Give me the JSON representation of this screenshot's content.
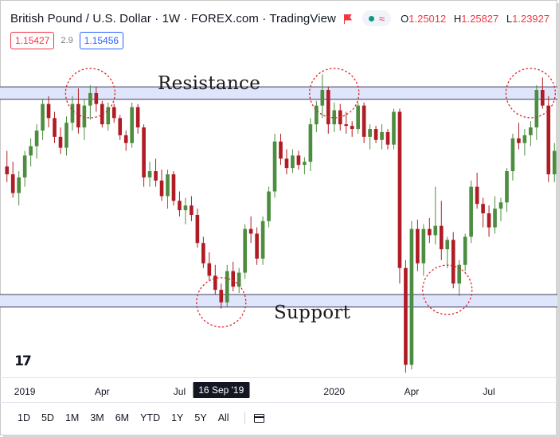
{
  "header": {
    "title": "British Pound / U.S. Dollar · 1W · FOREX.com · TradingView",
    "ohlc": [
      {
        "key": "O",
        "value": "1.25012"
      },
      {
        "key": "H",
        "value": "1.25827"
      },
      {
        "key": "L",
        "value": "1.23927"
      }
    ]
  },
  "quote": {
    "sell": "1.15427",
    "spread": "2.9",
    "buy": "1.15456"
  },
  "annotations": {
    "resistance": "Resistance",
    "support": "Support"
  },
  "colors": {
    "up": "#4c8d3f",
    "down": "#b01c24",
    "zone_fill": "#dfe5fb",
    "circle": "#e0242c",
    "accent_red": "#f23645",
    "accent_blue": "#2962ff"
  },
  "x_axis": {
    "labels": [
      {
        "text": "2019",
        "index": 3
      },
      {
        "text": "Apr",
        "index": 16
      },
      {
        "text": "Jul",
        "index": 29
      },
      {
        "text": "16 Sep '19",
        "index": 36,
        "highlight": true
      },
      {
        "text": "2020",
        "index": 55
      },
      {
        "text": "Apr",
        "index": 68
      },
      {
        "text": "Jul",
        "index": 81
      }
    ]
  },
  "footer": {
    "ranges": [
      "1D",
      "5D",
      "1M",
      "3M",
      "6M",
      "YTD",
      "1Y",
      "5Y",
      "All"
    ]
  },
  "logo": {
    "text": "17"
  },
  "chart_data": {
    "type": "candlestick",
    "symbol": "GBPUSD",
    "interval": "1W",
    "ylim": [
      1.14,
      1.35
    ],
    "zones": [
      {
        "label": "Resistance",
        "low": 1.318,
        "high": 1.326
      },
      {
        "label": "Support",
        "low": 1.185,
        "high": 1.193
      }
    ],
    "highlights": [
      {
        "index": 14,
        "price": 1.322
      },
      {
        "index": 36,
        "price": 1.188
      },
      {
        "index": 55,
        "price": 1.322
      },
      {
        "index": 74,
        "price": 1.196
      },
      {
        "index": 88,
        "price": 1.322
      }
    ],
    "candles": [
      [
        1.275,
        1.285,
        1.265,
        1.27
      ],
      [
        1.27,
        1.278,
        1.255,
        1.258
      ],
      [
        1.258,
        1.272,
        1.25,
        1.268
      ],
      [
        1.268,
        1.285,
        1.262,
        1.282
      ],
      [
        1.282,
        1.293,
        1.275,
        1.288
      ],
      [
        1.288,
        1.302,
        1.28,
        1.298
      ],
      [
        1.298,
        1.318,
        1.292,
        1.315
      ],
      [
        1.315,
        1.32,
        1.3,
        1.306
      ],
      [
        1.306,
        1.31,
        1.29,
        1.294
      ],
      [
        1.294,
        1.3,
        1.283,
        1.287
      ],
      [
        1.287,
        1.307,
        1.282,
        1.303
      ],
      [
        1.303,
        1.32,
        1.298,
        1.315
      ],
      [
        1.315,
        1.325,
        1.296,
        1.3
      ],
      [
        1.3,
        1.318,
        1.292,
        1.314
      ],
      [
        1.314,
        1.327,
        1.305,
        1.322
      ],
      [
        1.322,
        1.326,
        1.31,
        1.315
      ],
      [
        1.315,
        1.317,
        1.3,
        1.302
      ],
      [
        1.302,
        1.316,
        1.298,
        1.313
      ],
      [
        1.313,
        1.315,
        1.303,
        1.306
      ],
      [
        1.306,
        1.308,
        1.292,
        1.295
      ],
      [
        1.295,
        1.298,
        1.285,
        1.29
      ],
      [
        1.29,
        1.316,
        1.287,
        1.313
      ],
      [
        1.313,
        1.315,
        1.296,
        1.3
      ],
      [
        1.3,
        1.302,
        1.262,
        1.268
      ],
      [
        1.268,
        1.278,
        1.262,
        1.272
      ],
      [
        1.272,
        1.28,
        1.262,
        1.266
      ],
      [
        1.266,
        1.273,
        1.253,
        1.256
      ],
      [
        1.256,
        1.273,
        1.248,
        1.27
      ],
      [
        1.27,
        1.272,
        1.25,
        1.253
      ],
      [
        1.253,
        1.259,
        1.243,
        1.247
      ],
      [
        1.247,
        1.255,
        1.238,
        1.25
      ],
      [
        1.25,
        1.256,
        1.24,
        1.244
      ],
      [
        1.244,
        1.248,
        1.223,
        1.226
      ],
      [
        1.226,
        1.23,
        1.21,
        1.213
      ],
      [
        1.213,
        1.22,
        1.202,
        1.205
      ],
      [
        1.205,
        1.212,
        1.193,
        1.196
      ],
      [
        1.196,
        1.2,
        1.184,
        1.188
      ],
      [
        1.188,
        1.212,
        1.185,
        1.208
      ],
      [
        1.208,
        1.214,
        1.195,
        1.198
      ],
      [
        1.198,
        1.21,
        1.194,
        1.207
      ],
      [
        1.207,
        1.238,
        1.203,
        1.235
      ],
      [
        1.235,
        1.243,
        1.226,
        1.232
      ],
      [
        1.232,
        1.236,
        1.212,
        1.216
      ],
      [
        1.216,
        1.243,
        1.212,
        1.24
      ],
      [
        1.24,
        1.262,
        1.236,
        1.259
      ],
      [
        1.259,
        1.296,
        1.255,
        1.291
      ],
      [
        1.291,
        1.296,
        1.276,
        1.28
      ],
      [
        1.28,
        1.286,
        1.27,
        1.274
      ],
      [
        1.274,
        1.286,
        1.271,
        1.282
      ],
      [
        1.282,
        1.285,
        1.273,
        1.276
      ],
      [
        1.276,
        1.281,
        1.27,
        1.278
      ],
      [
        1.278,
        1.306,
        1.272,
        1.302
      ],
      [
        1.302,
        1.317,
        1.297,
        1.314
      ],
      [
        1.314,
        1.334,
        1.306,
        1.324
      ],
      [
        1.324,
        1.326,
        1.296,
        1.302
      ],
      [
        1.302,
        1.316,
        1.297,
        1.311
      ],
      [
        1.311,
        1.315,
        1.298,
        1.302
      ],
      [
        1.302,
        1.31,
        1.296,
        1.301
      ],
      [
        1.301,
        1.304,
        1.294,
        1.299
      ],
      [
        1.299,
        1.316,
        1.296,
        1.314
      ],
      [
        1.314,
        1.316,
        1.29,
        1.294
      ],
      [
        1.294,
        1.302,
        1.286,
        1.299
      ],
      [
        1.299,
        1.301,
        1.29,
        1.292
      ],
      [
        1.292,
        1.302,
        1.286,
        1.297
      ],
      [
        1.297,
        1.299,
        1.286,
        1.289
      ],
      [
        1.289,
        1.312,
        1.286,
        1.31
      ],
      [
        1.31,
        1.312,
        1.2,
        1.21
      ],
      [
        1.21,
        1.215,
        1.143,
        1.148
      ],
      [
        1.148,
        1.24,
        1.145,
        1.235
      ],
      [
        1.235,
        1.241,
        1.208,
        1.213
      ],
      [
        1.213,
        1.238,
        1.205,
        1.235
      ],
      [
        1.235,
        1.242,
        1.226,
        1.231
      ],
      [
        1.231,
        1.262,
        1.225,
        1.237
      ],
      [
        1.237,
        1.253,
        1.215,
        1.222
      ],
      [
        1.222,
        1.23,
        1.21,
        1.228
      ],
      [
        1.228,
        1.233,
        1.197,
        1.2
      ],
      [
        1.2,
        1.215,
        1.192,
        1.212
      ],
      [
        1.212,
        1.232,
        1.208,
        1.23
      ],
      [
        1.23,
        1.266,
        1.226,
        1.262
      ],
      [
        1.262,
        1.271,
        1.248,
        1.251
      ],
      [
        1.251,
        1.255,
        1.236,
        1.245
      ],
      [
        1.245,
        1.25,
        1.23,
        1.236
      ],
      [
        1.236,
        1.256,
        1.232,
        1.248
      ],
      [
        1.248,
        1.255,
        1.24,
        1.252
      ],
      [
        1.252,
        1.274,
        1.246,
        1.272
      ],
      [
        1.272,
        1.296,
        1.266,
        1.293
      ],
      [
        1.293,
        1.303,
        1.286,
        1.29
      ],
      [
        1.29,
        1.299,
        1.282,
        1.295
      ],
      [
        1.295,
        1.304,
        1.288,
        1.3
      ],
      [
        1.3,
        1.327,
        1.292,
        1.324
      ],
      [
        1.324,
        1.332,
        1.312,
        1.314
      ],
      [
        1.314,
        1.32,
        1.265,
        1.27
      ],
      [
        1.27,
        1.29,
        1.265,
        1.285
      ]
    ]
  }
}
